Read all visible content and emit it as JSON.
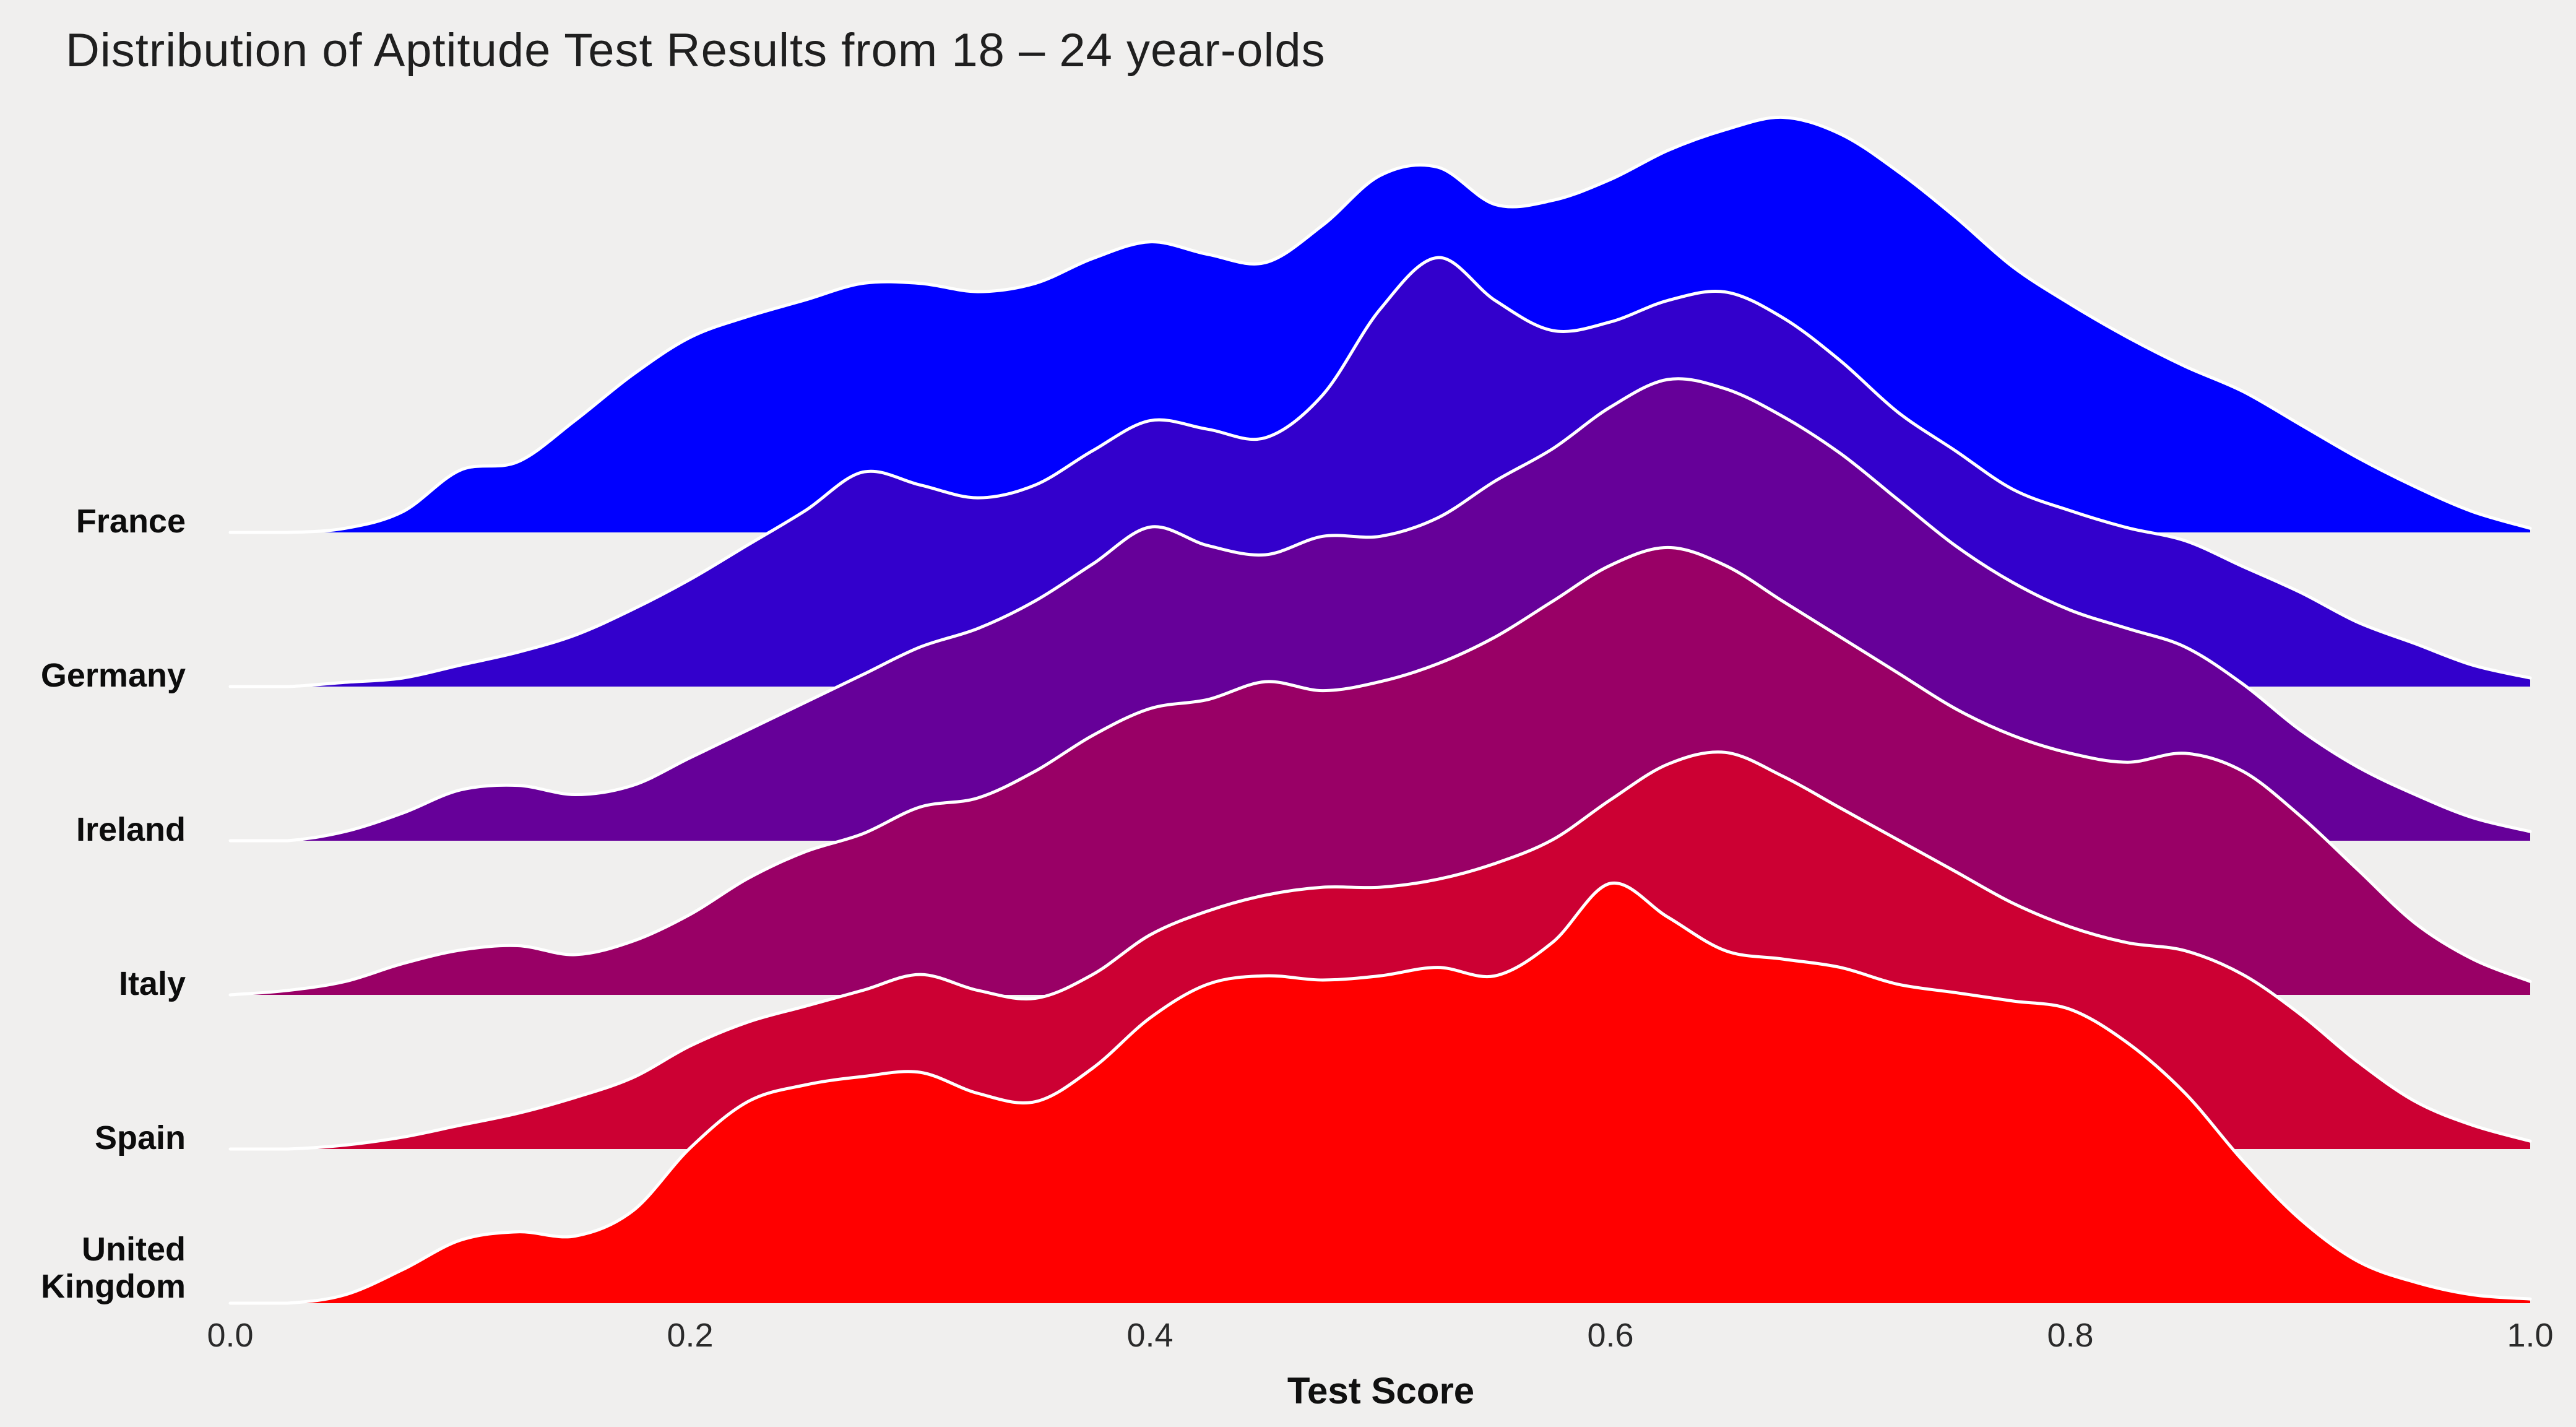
{
  "title": "Distribution of Aptitude Test Results from 18 – 24 year-olds",
  "colors": {
    "background": "#f0efee",
    "ridge_outline": "#ffffff",
    "title_text": "#1f1f1f",
    "label_text": "#0c0c0c"
  },
  "chart_data": {
    "type": "area",
    "subtype": "ridgeline-density",
    "title": "Distribution of Aptitude Test Results from 18 – 24 year-olds",
    "xlabel": "Test Score",
    "ylabel": "",
    "xlim": [
      0.0,
      1.0
    ],
    "grid": false,
    "legend": "none",
    "xticks": [
      0.0,
      0.2,
      0.4,
      0.6,
      0.8,
      1.0
    ],
    "xtick_labels": [
      "0.0",
      "0.2",
      "0.4",
      "0.6",
      "0.8",
      "1.0"
    ],
    "x": [
      0.0,
      0.025,
      0.05,
      0.075,
      0.1,
      0.125,
      0.15,
      0.175,
      0.2,
      0.225,
      0.25,
      0.275,
      0.3,
      0.325,
      0.35,
      0.375,
      0.4,
      0.425,
      0.45,
      0.475,
      0.5,
      0.525,
      0.55,
      0.575,
      0.6,
      0.625,
      0.65,
      0.675,
      0.7,
      0.725,
      0.75,
      0.775,
      0.8,
      0.825,
      0.85,
      0.875,
      0.9,
      0.925,
      0.95,
      0.975,
      1.0
    ],
    "series": [
      {
        "name": "France",
        "color": "#0000FF",
        "peak": 0.9,
        "values": [
          0.0,
          0.0,
          0.01,
          0.05,
          0.15,
          0.17,
          0.27,
          0.38,
          0.47,
          0.52,
          0.56,
          0.6,
          0.6,
          0.58,
          0.6,
          0.66,
          0.7,
          0.67,
          0.65,
          0.74,
          0.86,
          0.88,
          0.79,
          0.8,
          0.85,
          0.92,
          0.97,
          1.0,
          0.96,
          0.87,
          0.76,
          0.64,
          0.55,
          0.47,
          0.4,
          0.34,
          0.26,
          0.18,
          0.11,
          0.05,
          0.01
        ]
      },
      {
        "name": "Germany",
        "color": "#3300CC",
        "peak": 0.93,
        "values": [
          0.0,
          0.0,
          0.01,
          0.02,
          0.05,
          0.08,
          0.12,
          0.18,
          0.25,
          0.33,
          0.41,
          0.5,
          0.47,
          0.44,
          0.47,
          0.55,
          0.62,
          0.6,
          0.58,
          0.68,
          0.88,
          1.0,
          0.9,
          0.83,
          0.85,
          0.9,
          0.92,
          0.86,
          0.76,
          0.64,
          0.55,
          0.46,
          0.41,
          0.37,
          0.34,
          0.28,
          0.22,
          0.15,
          0.1,
          0.05,
          0.02
        ]
      },
      {
        "name": "Ireland",
        "color": "#660099",
        "peak": 1.0,
        "values": [
          0.0,
          0.0,
          0.02,
          0.06,
          0.11,
          0.12,
          0.1,
          0.12,
          0.18,
          0.24,
          0.3,
          0.36,
          0.42,
          0.46,
          0.52,
          0.6,
          0.68,
          0.64,
          0.62,
          0.66,
          0.66,
          0.7,
          0.78,
          0.85,
          0.94,
          1.0,
          0.98,
          0.92,
          0.84,
          0.74,
          0.64,
          0.56,
          0.5,
          0.46,
          0.42,
          0.34,
          0.24,
          0.16,
          0.1,
          0.05,
          0.02
        ]
      },
      {
        "name": "Italy",
        "color": "#990066",
        "peak": 0.97,
        "values": [
          0.0,
          0.01,
          0.03,
          0.07,
          0.1,
          0.11,
          0.09,
          0.12,
          0.18,
          0.26,
          0.32,
          0.36,
          0.42,
          0.44,
          0.5,
          0.58,
          0.64,
          0.66,
          0.7,
          0.68,
          0.7,
          0.74,
          0.8,
          0.88,
          0.96,
          1.0,
          0.96,
          0.88,
          0.8,
          0.72,
          0.64,
          0.58,
          0.54,
          0.52,
          0.54,
          0.5,
          0.4,
          0.28,
          0.16,
          0.08,
          0.03
        ]
      },
      {
        "name": "Spain",
        "color": "#CC0033",
        "peak": 0.86,
        "values": [
          0.0,
          0.0,
          0.01,
          0.03,
          0.06,
          0.09,
          0.13,
          0.18,
          0.26,
          0.32,
          0.36,
          0.4,
          0.44,
          0.4,
          0.38,
          0.44,
          0.54,
          0.6,
          0.64,
          0.66,
          0.66,
          0.68,
          0.72,
          0.78,
          0.88,
          0.97,
          1.0,
          0.94,
          0.86,
          0.78,
          0.7,
          0.62,
          0.56,
          0.52,
          0.5,
          0.44,
          0.34,
          0.22,
          0.12,
          0.06,
          0.02
        ]
      },
      {
        "name": "United Kingdom",
        "color": "#FF0000",
        "peak": 0.91,
        "values": [
          0.0,
          0.0,
          0.02,
          0.08,
          0.15,
          0.17,
          0.16,
          0.22,
          0.37,
          0.48,
          0.52,
          0.54,
          0.55,
          0.5,
          0.48,
          0.56,
          0.68,
          0.76,
          0.78,
          0.77,
          0.78,
          0.8,
          0.78,
          0.86,
          1.0,
          0.92,
          0.84,
          0.82,
          0.8,
          0.76,
          0.74,
          0.72,
          0.7,
          0.62,
          0.5,
          0.34,
          0.2,
          0.1,
          0.05,
          0.02,
          0.01
        ]
      }
    ]
  }
}
